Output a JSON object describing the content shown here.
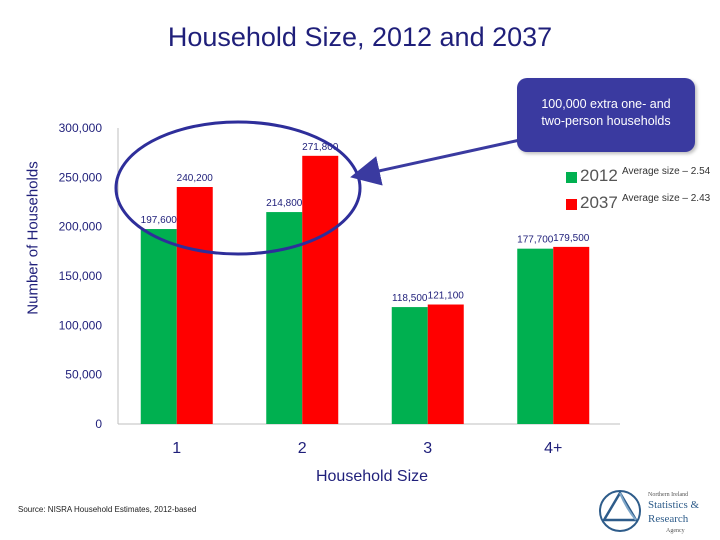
{
  "title": "Household Size, 2012 and 2037",
  "colors": {
    "series_2012": "#00b050",
    "series_2037": "#ff0000",
    "axis_text": "#1f1f7a",
    "callout_bg": "#3a3aa0",
    "ellipse": "#2e2e9a"
  },
  "callout": {
    "line1": "100,000 extra one- and",
    "line2": "two-person households"
  },
  "legend": [
    {
      "year": "2012",
      "note": "Average size – 2.54"
    },
    {
      "year": "2037",
      "note": "Average size – 2.43"
    }
  ],
  "source": "Source: NISRA Household Estimates, 2012-based",
  "logo": {
    "line1": "Northern Ireland",
    "line2": "Statistics &",
    "line3": "Research",
    "line4": "Agency",
    "icon": "nisra-triangle-logo"
  },
  "chart_data": {
    "type": "bar",
    "title": "Household Size, 2012 and 2037",
    "xlabel": "Household Size",
    "ylabel": "Number of Households",
    "categories": [
      "1",
      "2",
      "3",
      "4+"
    ],
    "series": [
      {
        "name": "2012",
        "values": [
          197600,
          214800,
          118500,
          177700
        ],
        "labels": [
          "197,600",
          "214,800",
          "118,500",
          "177,700"
        ]
      },
      {
        "name": "2037",
        "values": [
          240200,
          271800,
          121100,
          179500
        ],
        "labels": [
          "240,200",
          "271,800",
          "121,100",
          "179,500"
        ]
      }
    ],
    "ylim": [
      0,
      300000
    ],
    "yticks": [
      0,
      50000,
      100000,
      150000,
      200000,
      250000,
      300000
    ],
    "ytick_labels": [
      "0",
      "50,000",
      "100,000",
      "150,000",
      "200,000",
      "250,000",
      "300,000"
    ],
    "grid": false,
    "legend_position": "right"
  }
}
